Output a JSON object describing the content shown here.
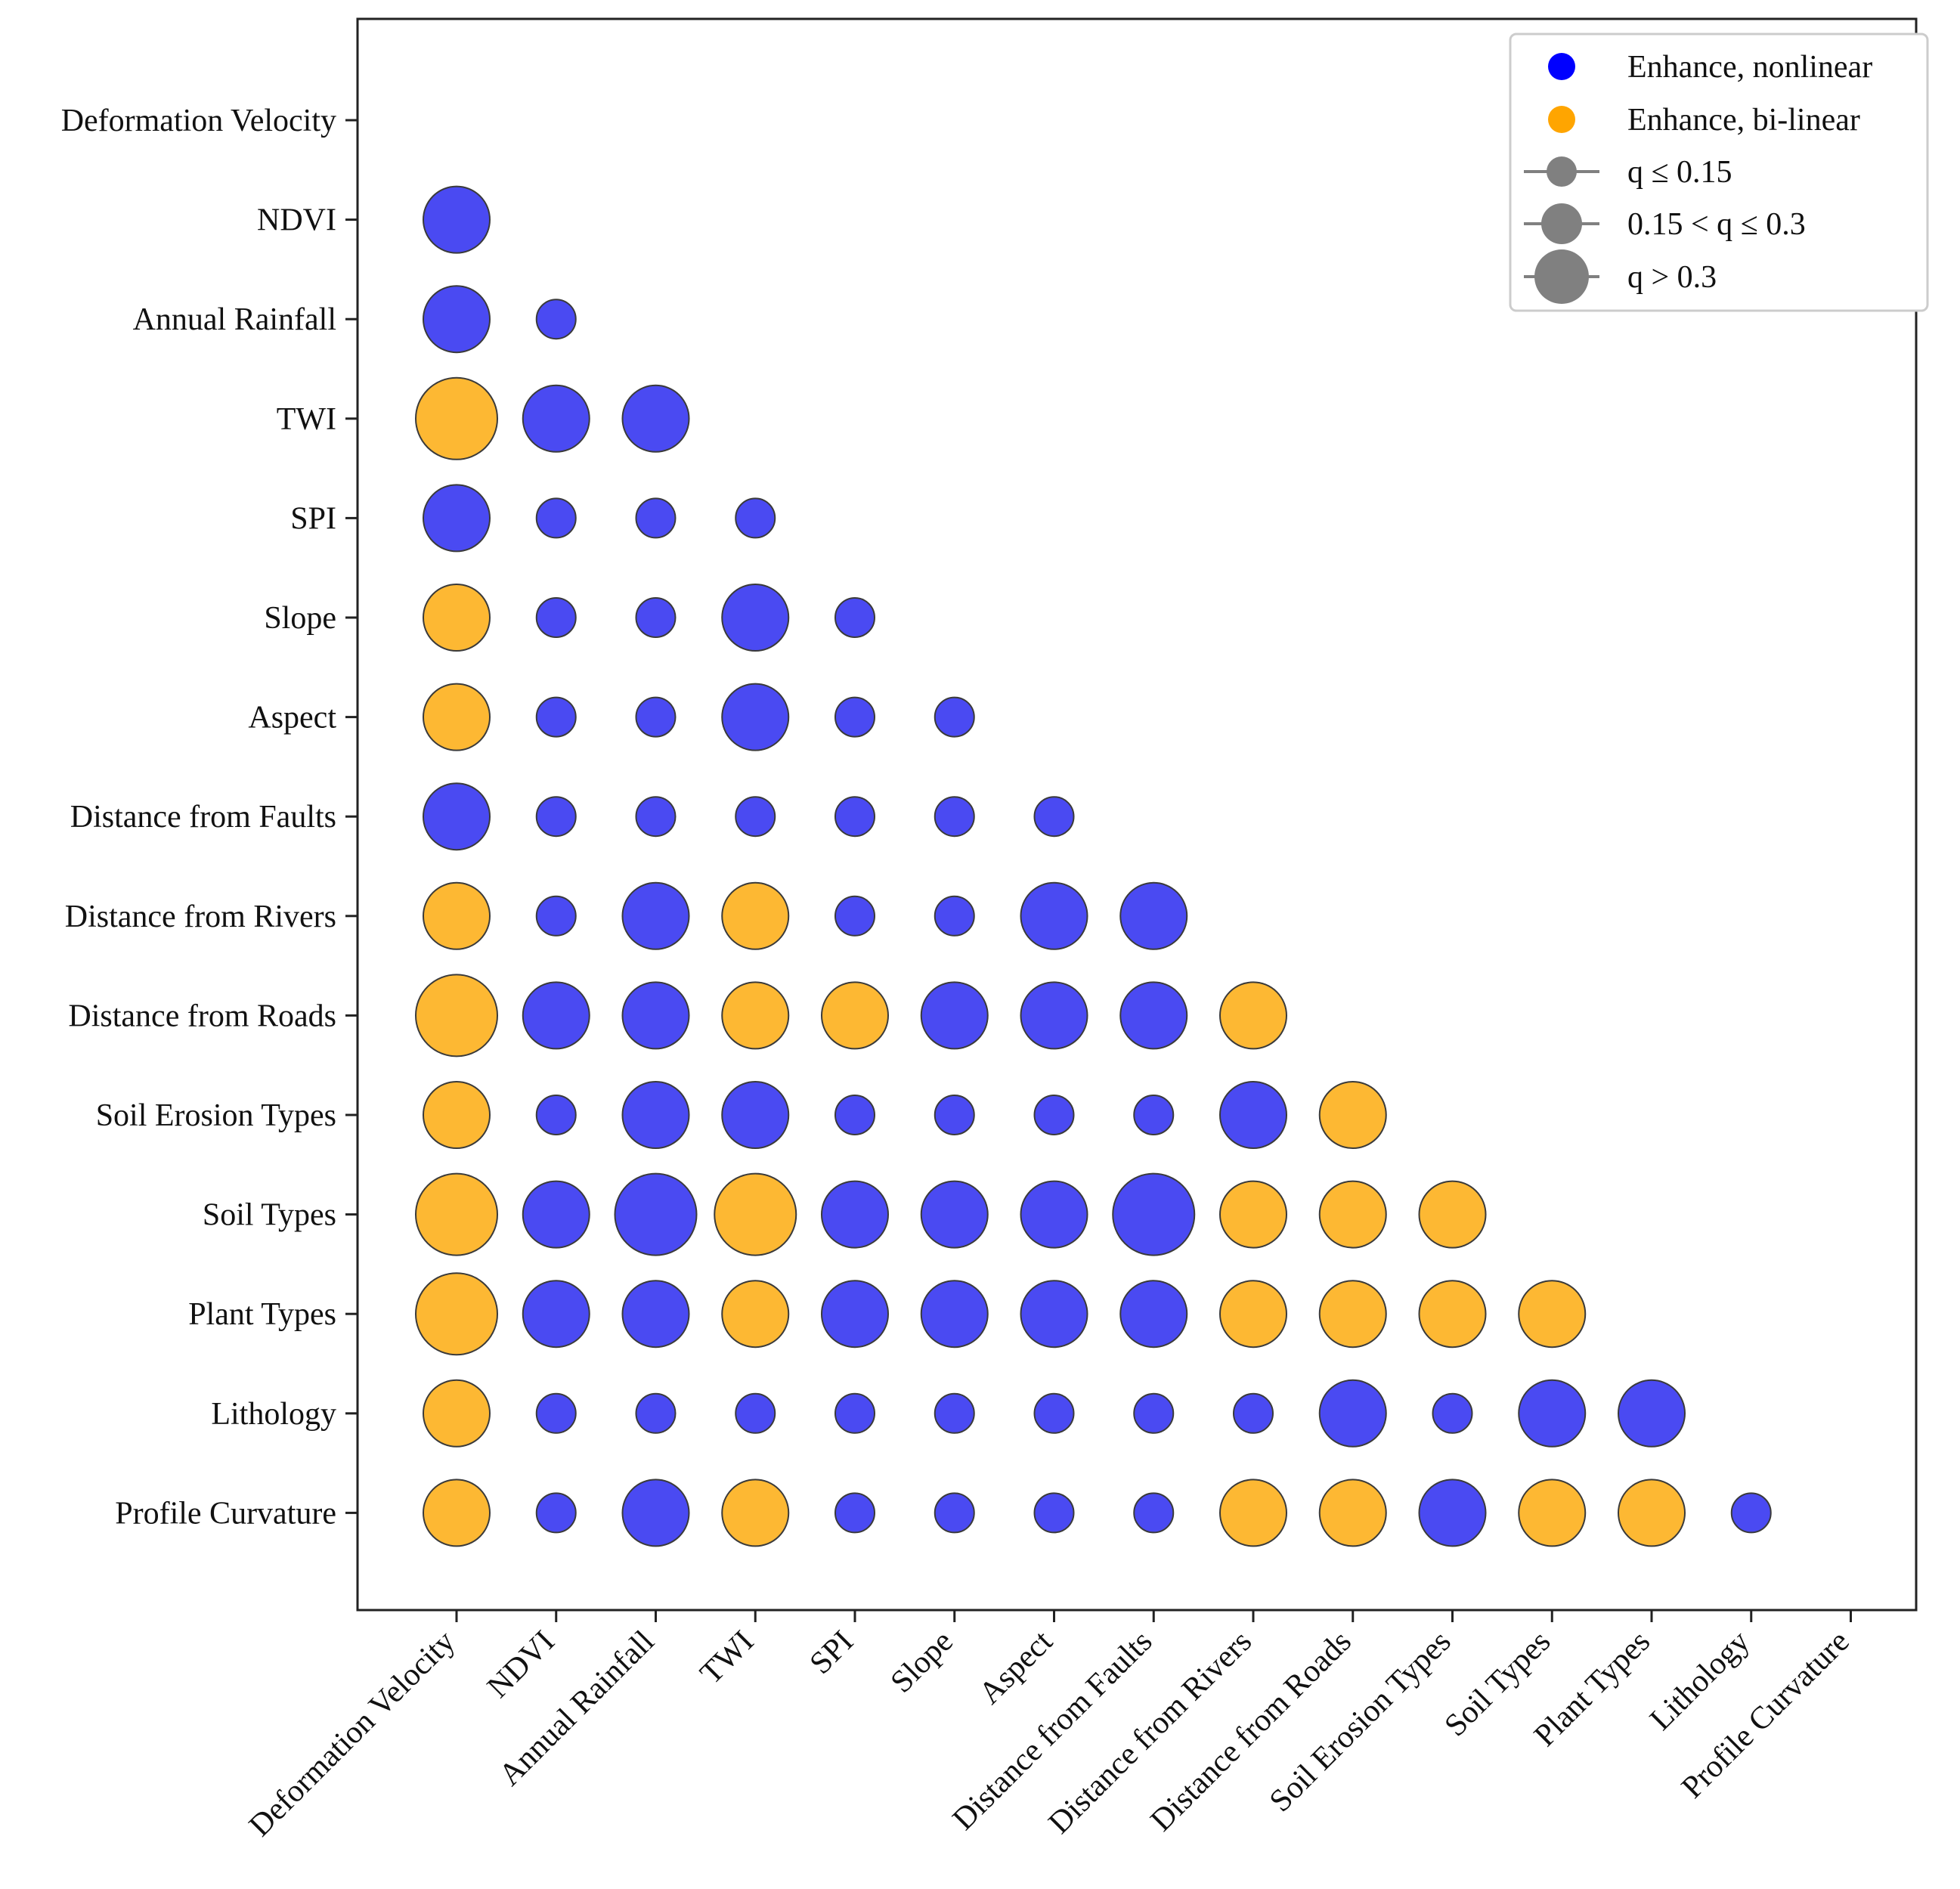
{
  "chart_data": {
    "type": "scatter",
    "variables": [
      "Deformation Velocity",
      "NDVI",
      "Annual Rainfall",
      "TWI",
      "SPI",
      "Slope",
      "Aspect",
      "Distance from Faults",
      "Distance from Rivers",
      "Distance from Roads",
      "Soil Erosion Types",
      "Soil Types",
      "Plant Types",
      "Lithology",
      "Profile Curvature"
    ],
    "colors": {
      "nonlinear": "#4a4af2",
      "bilinear": "#fdb833",
      "legend_nonlinear": "#0000ff",
      "legend_bilinear": "#ffa500",
      "size_marker": "#808080"
    },
    "legend": {
      "position": "top-right",
      "entries": [
        {
          "key": "nonlinear",
          "label": "Enhance, nonlinear"
        },
        {
          "key": "bilinear",
          "label": "Enhance, bi-linear"
        },
        {
          "size": "small",
          "label": "q ≤ 0.15"
        },
        {
          "size": "medium",
          "label": "0.15 < q ≤ 0.3"
        },
        {
          "size": "large",
          "label": "q > 0.3"
        }
      ]
    },
    "points": [
      {
        "x": "Deformation Velocity",
        "y": "NDVI",
        "type": "nonlinear",
        "size": "medium"
      },
      {
        "x": "Deformation Velocity",
        "y": "Annual Rainfall",
        "type": "nonlinear",
        "size": "medium"
      },
      {
        "x": "Deformation Velocity",
        "y": "TWI",
        "type": "bilinear",
        "size": "large"
      },
      {
        "x": "Deformation Velocity",
        "y": "SPI",
        "type": "nonlinear",
        "size": "medium"
      },
      {
        "x": "Deformation Velocity",
        "y": "Slope",
        "type": "bilinear",
        "size": "medium"
      },
      {
        "x": "Deformation Velocity",
        "y": "Aspect",
        "type": "bilinear",
        "size": "medium"
      },
      {
        "x": "Deformation Velocity",
        "y": "Distance from Faults",
        "type": "nonlinear",
        "size": "medium"
      },
      {
        "x": "Deformation Velocity",
        "y": "Distance from Rivers",
        "type": "bilinear",
        "size": "medium"
      },
      {
        "x": "Deformation Velocity",
        "y": "Distance from Roads",
        "type": "bilinear",
        "size": "large"
      },
      {
        "x": "Deformation Velocity",
        "y": "Soil Erosion Types",
        "type": "bilinear",
        "size": "medium"
      },
      {
        "x": "Deformation Velocity",
        "y": "Soil Types",
        "type": "bilinear",
        "size": "large"
      },
      {
        "x": "Deformation Velocity",
        "y": "Plant Types",
        "type": "bilinear",
        "size": "large"
      },
      {
        "x": "Deformation Velocity",
        "y": "Lithology",
        "type": "bilinear",
        "size": "medium"
      },
      {
        "x": "Deformation Velocity",
        "y": "Profile Curvature",
        "type": "bilinear",
        "size": "medium"
      },
      {
        "x": "NDVI",
        "y": "Annual Rainfall",
        "type": "nonlinear",
        "size": "small"
      },
      {
        "x": "NDVI",
        "y": "TWI",
        "type": "nonlinear",
        "size": "medium"
      },
      {
        "x": "NDVI",
        "y": "SPI",
        "type": "nonlinear",
        "size": "small"
      },
      {
        "x": "NDVI",
        "y": "Slope",
        "type": "nonlinear",
        "size": "small"
      },
      {
        "x": "NDVI",
        "y": "Aspect",
        "type": "nonlinear",
        "size": "small"
      },
      {
        "x": "NDVI",
        "y": "Distance from Faults",
        "type": "nonlinear",
        "size": "small"
      },
      {
        "x": "NDVI",
        "y": "Distance from Rivers",
        "type": "nonlinear",
        "size": "small"
      },
      {
        "x": "NDVI",
        "y": "Distance from Roads",
        "type": "nonlinear",
        "size": "medium"
      },
      {
        "x": "NDVI",
        "y": "Soil Erosion Types",
        "type": "nonlinear",
        "size": "small"
      },
      {
        "x": "NDVI",
        "y": "Soil Types",
        "type": "nonlinear",
        "size": "medium"
      },
      {
        "x": "NDVI",
        "y": "Plant Types",
        "type": "nonlinear",
        "size": "medium"
      },
      {
        "x": "NDVI",
        "y": "Lithology",
        "type": "nonlinear",
        "size": "small"
      },
      {
        "x": "NDVI",
        "y": "Profile Curvature",
        "type": "nonlinear",
        "size": "small"
      },
      {
        "x": "Annual Rainfall",
        "y": "TWI",
        "type": "nonlinear",
        "size": "medium"
      },
      {
        "x": "Annual Rainfall",
        "y": "SPI",
        "type": "nonlinear",
        "size": "small"
      },
      {
        "x": "Annual Rainfall",
        "y": "Slope",
        "type": "nonlinear",
        "size": "small"
      },
      {
        "x": "Annual Rainfall",
        "y": "Aspect",
        "type": "nonlinear",
        "size": "small"
      },
      {
        "x": "Annual Rainfall",
        "y": "Distance from Faults",
        "type": "nonlinear",
        "size": "small"
      },
      {
        "x": "Annual Rainfall",
        "y": "Distance from Rivers",
        "type": "nonlinear",
        "size": "medium"
      },
      {
        "x": "Annual Rainfall",
        "y": "Distance from Roads",
        "type": "nonlinear",
        "size": "medium"
      },
      {
        "x": "Annual Rainfall",
        "y": "Soil Erosion Types",
        "type": "nonlinear",
        "size": "medium"
      },
      {
        "x": "Annual Rainfall",
        "y": "Soil Types",
        "type": "nonlinear",
        "size": "large"
      },
      {
        "x": "Annual Rainfall",
        "y": "Plant Types",
        "type": "nonlinear",
        "size": "medium"
      },
      {
        "x": "Annual Rainfall",
        "y": "Lithology",
        "type": "nonlinear",
        "size": "small"
      },
      {
        "x": "Annual Rainfall",
        "y": "Profile Curvature",
        "type": "nonlinear",
        "size": "medium"
      },
      {
        "x": "TWI",
        "y": "SPI",
        "type": "nonlinear",
        "size": "small"
      },
      {
        "x": "TWI",
        "y": "Slope",
        "type": "nonlinear",
        "size": "medium"
      },
      {
        "x": "TWI",
        "y": "Aspect",
        "type": "nonlinear",
        "size": "medium"
      },
      {
        "x": "TWI",
        "y": "Distance from Faults",
        "type": "nonlinear",
        "size": "small"
      },
      {
        "x": "TWI",
        "y": "Distance from Rivers",
        "type": "bilinear",
        "size": "medium"
      },
      {
        "x": "TWI",
        "y": "Distance from Roads",
        "type": "bilinear",
        "size": "medium"
      },
      {
        "x": "TWI",
        "y": "Soil Erosion Types",
        "type": "nonlinear",
        "size": "medium"
      },
      {
        "x": "TWI",
        "y": "Soil Types",
        "type": "bilinear",
        "size": "large"
      },
      {
        "x": "TWI",
        "y": "Plant Types",
        "type": "bilinear",
        "size": "medium"
      },
      {
        "x": "TWI",
        "y": "Lithology",
        "type": "nonlinear",
        "size": "small"
      },
      {
        "x": "TWI",
        "y": "Profile Curvature",
        "type": "bilinear",
        "size": "medium"
      },
      {
        "x": "SPI",
        "y": "Slope",
        "type": "nonlinear",
        "size": "small"
      },
      {
        "x": "SPI",
        "y": "Aspect",
        "type": "nonlinear",
        "size": "small"
      },
      {
        "x": "SPI",
        "y": "Distance from Faults",
        "type": "nonlinear",
        "size": "small"
      },
      {
        "x": "SPI",
        "y": "Distance from Rivers",
        "type": "nonlinear",
        "size": "small"
      },
      {
        "x": "SPI",
        "y": "Distance from Roads",
        "type": "bilinear",
        "size": "medium"
      },
      {
        "x": "SPI",
        "y": "Soil Erosion Types",
        "type": "nonlinear",
        "size": "small"
      },
      {
        "x": "SPI",
        "y": "Soil Types",
        "type": "nonlinear",
        "size": "medium"
      },
      {
        "x": "SPI",
        "y": "Plant Types",
        "type": "nonlinear",
        "size": "medium"
      },
      {
        "x": "SPI",
        "y": "Lithology",
        "type": "nonlinear",
        "size": "small"
      },
      {
        "x": "SPI",
        "y": "Profile Curvature",
        "type": "nonlinear",
        "size": "small"
      },
      {
        "x": "Slope",
        "y": "Aspect",
        "type": "nonlinear",
        "size": "small"
      },
      {
        "x": "Slope",
        "y": "Distance from Faults",
        "type": "nonlinear",
        "size": "small"
      },
      {
        "x": "Slope",
        "y": "Distance from Rivers",
        "type": "nonlinear",
        "size": "small"
      },
      {
        "x": "Slope",
        "y": "Distance from Roads",
        "type": "nonlinear",
        "size": "medium"
      },
      {
        "x": "Slope",
        "y": "Soil Erosion Types",
        "type": "nonlinear",
        "size": "small"
      },
      {
        "x": "Slope",
        "y": "Soil Types",
        "type": "nonlinear",
        "size": "medium"
      },
      {
        "x": "Slope",
        "y": "Plant Types",
        "type": "nonlinear",
        "size": "medium"
      },
      {
        "x": "Slope",
        "y": "Lithology",
        "type": "nonlinear",
        "size": "small"
      },
      {
        "x": "Slope",
        "y": "Profile Curvature",
        "type": "nonlinear",
        "size": "small"
      },
      {
        "x": "Aspect",
        "y": "Distance from Faults",
        "type": "nonlinear",
        "size": "small"
      },
      {
        "x": "Aspect",
        "y": "Distance from Rivers",
        "type": "nonlinear",
        "size": "medium"
      },
      {
        "x": "Aspect",
        "y": "Distance from Roads",
        "type": "nonlinear",
        "size": "medium"
      },
      {
        "x": "Aspect",
        "y": "Soil Erosion Types",
        "type": "nonlinear",
        "size": "small"
      },
      {
        "x": "Aspect",
        "y": "Soil Types",
        "type": "nonlinear",
        "size": "medium"
      },
      {
        "x": "Aspect",
        "y": "Plant Types",
        "type": "nonlinear",
        "size": "medium"
      },
      {
        "x": "Aspect",
        "y": "Lithology",
        "type": "nonlinear",
        "size": "small"
      },
      {
        "x": "Aspect",
        "y": "Profile Curvature",
        "type": "nonlinear",
        "size": "small"
      },
      {
        "x": "Distance from Faults",
        "y": "Distance from Rivers",
        "type": "nonlinear",
        "size": "medium"
      },
      {
        "x": "Distance from Faults",
        "y": "Distance from Roads",
        "type": "nonlinear",
        "size": "medium"
      },
      {
        "x": "Distance from Faults",
        "y": "Soil Erosion Types",
        "type": "nonlinear",
        "size": "small"
      },
      {
        "x": "Distance from Faults",
        "y": "Soil Types",
        "type": "nonlinear",
        "size": "large"
      },
      {
        "x": "Distance from Faults",
        "y": "Plant Types",
        "type": "nonlinear",
        "size": "medium"
      },
      {
        "x": "Distance from Faults",
        "y": "Lithology",
        "type": "nonlinear",
        "size": "small"
      },
      {
        "x": "Distance from Faults",
        "y": "Profile Curvature",
        "type": "nonlinear",
        "size": "small"
      },
      {
        "x": "Distance from Rivers",
        "y": "Distance from Roads",
        "type": "bilinear",
        "size": "medium"
      },
      {
        "x": "Distance from Rivers",
        "y": "Soil Erosion Types",
        "type": "nonlinear",
        "size": "medium"
      },
      {
        "x": "Distance from Rivers",
        "y": "Soil Types",
        "type": "bilinear",
        "size": "medium"
      },
      {
        "x": "Distance from Rivers",
        "y": "Plant Types",
        "type": "bilinear",
        "size": "medium"
      },
      {
        "x": "Distance from Rivers",
        "y": "Lithology",
        "type": "nonlinear",
        "size": "small"
      },
      {
        "x": "Distance from Rivers",
        "y": "Profile Curvature",
        "type": "bilinear",
        "size": "medium"
      },
      {
        "x": "Distance from Roads",
        "y": "Soil Erosion Types",
        "type": "bilinear",
        "size": "medium"
      },
      {
        "x": "Distance from Roads",
        "y": "Soil Types",
        "type": "bilinear",
        "size": "medium"
      },
      {
        "x": "Distance from Roads",
        "y": "Plant Types",
        "type": "bilinear",
        "size": "medium"
      },
      {
        "x": "Distance from Roads",
        "y": "Lithology",
        "type": "nonlinear",
        "size": "medium"
      },
      {
        "x": "Distance from Roads",
        "y": "Profile Curvature",
        "type": "bilinear",
        "size": "medium"
      },
      {
        "x": "Soil Erosion Types",
        "y": "Soil Types",
        "type": "bilinear",
        "size": "medium"
      },
      {
        "x": "Soil Erosion Types",
        "y": "Plant Types",
        "type": "bilinear",
        "size": "medium"
      },
      {
        "x": "Soil Erosion Types",
        "y": "Lithology",
        "type": "nonlinear",
        "size": "small"
      },
      {
        "x": "Soil Erosion Types",
        "y": "Profile Curvature",
        "type": "nonlinear",
        "size": "medium"
      },
      {
        "x": "Soil Types",
        "y": "Plant Types",
        "type": "bilinear",
        "size": "medium"
      },
      {
        "x": "Soil Types",
        "y": "Lithology",
        "type": "nonlinear",
        "size": "medium"
      },
      {
        "x": "Soil Types",
        "y": "Profile Curvature",
        "type": "bilinear",
        "size": "medium"
      },
      {
        "x": "Plant Types",
        "y": "Lithology",
        "type": "nonlinear",
        "size": "medium"
      },
      {
        "x": "Plant Types",
        "y": "Profile Curvature",
        "type": "bilinear",
        "size": "medium"
      },
      {
        "x": "Lithology",
        "y": "Profile Curvature",
        "type": "nonlinear",
        "size": "small"
      }
    ]
  }
}
